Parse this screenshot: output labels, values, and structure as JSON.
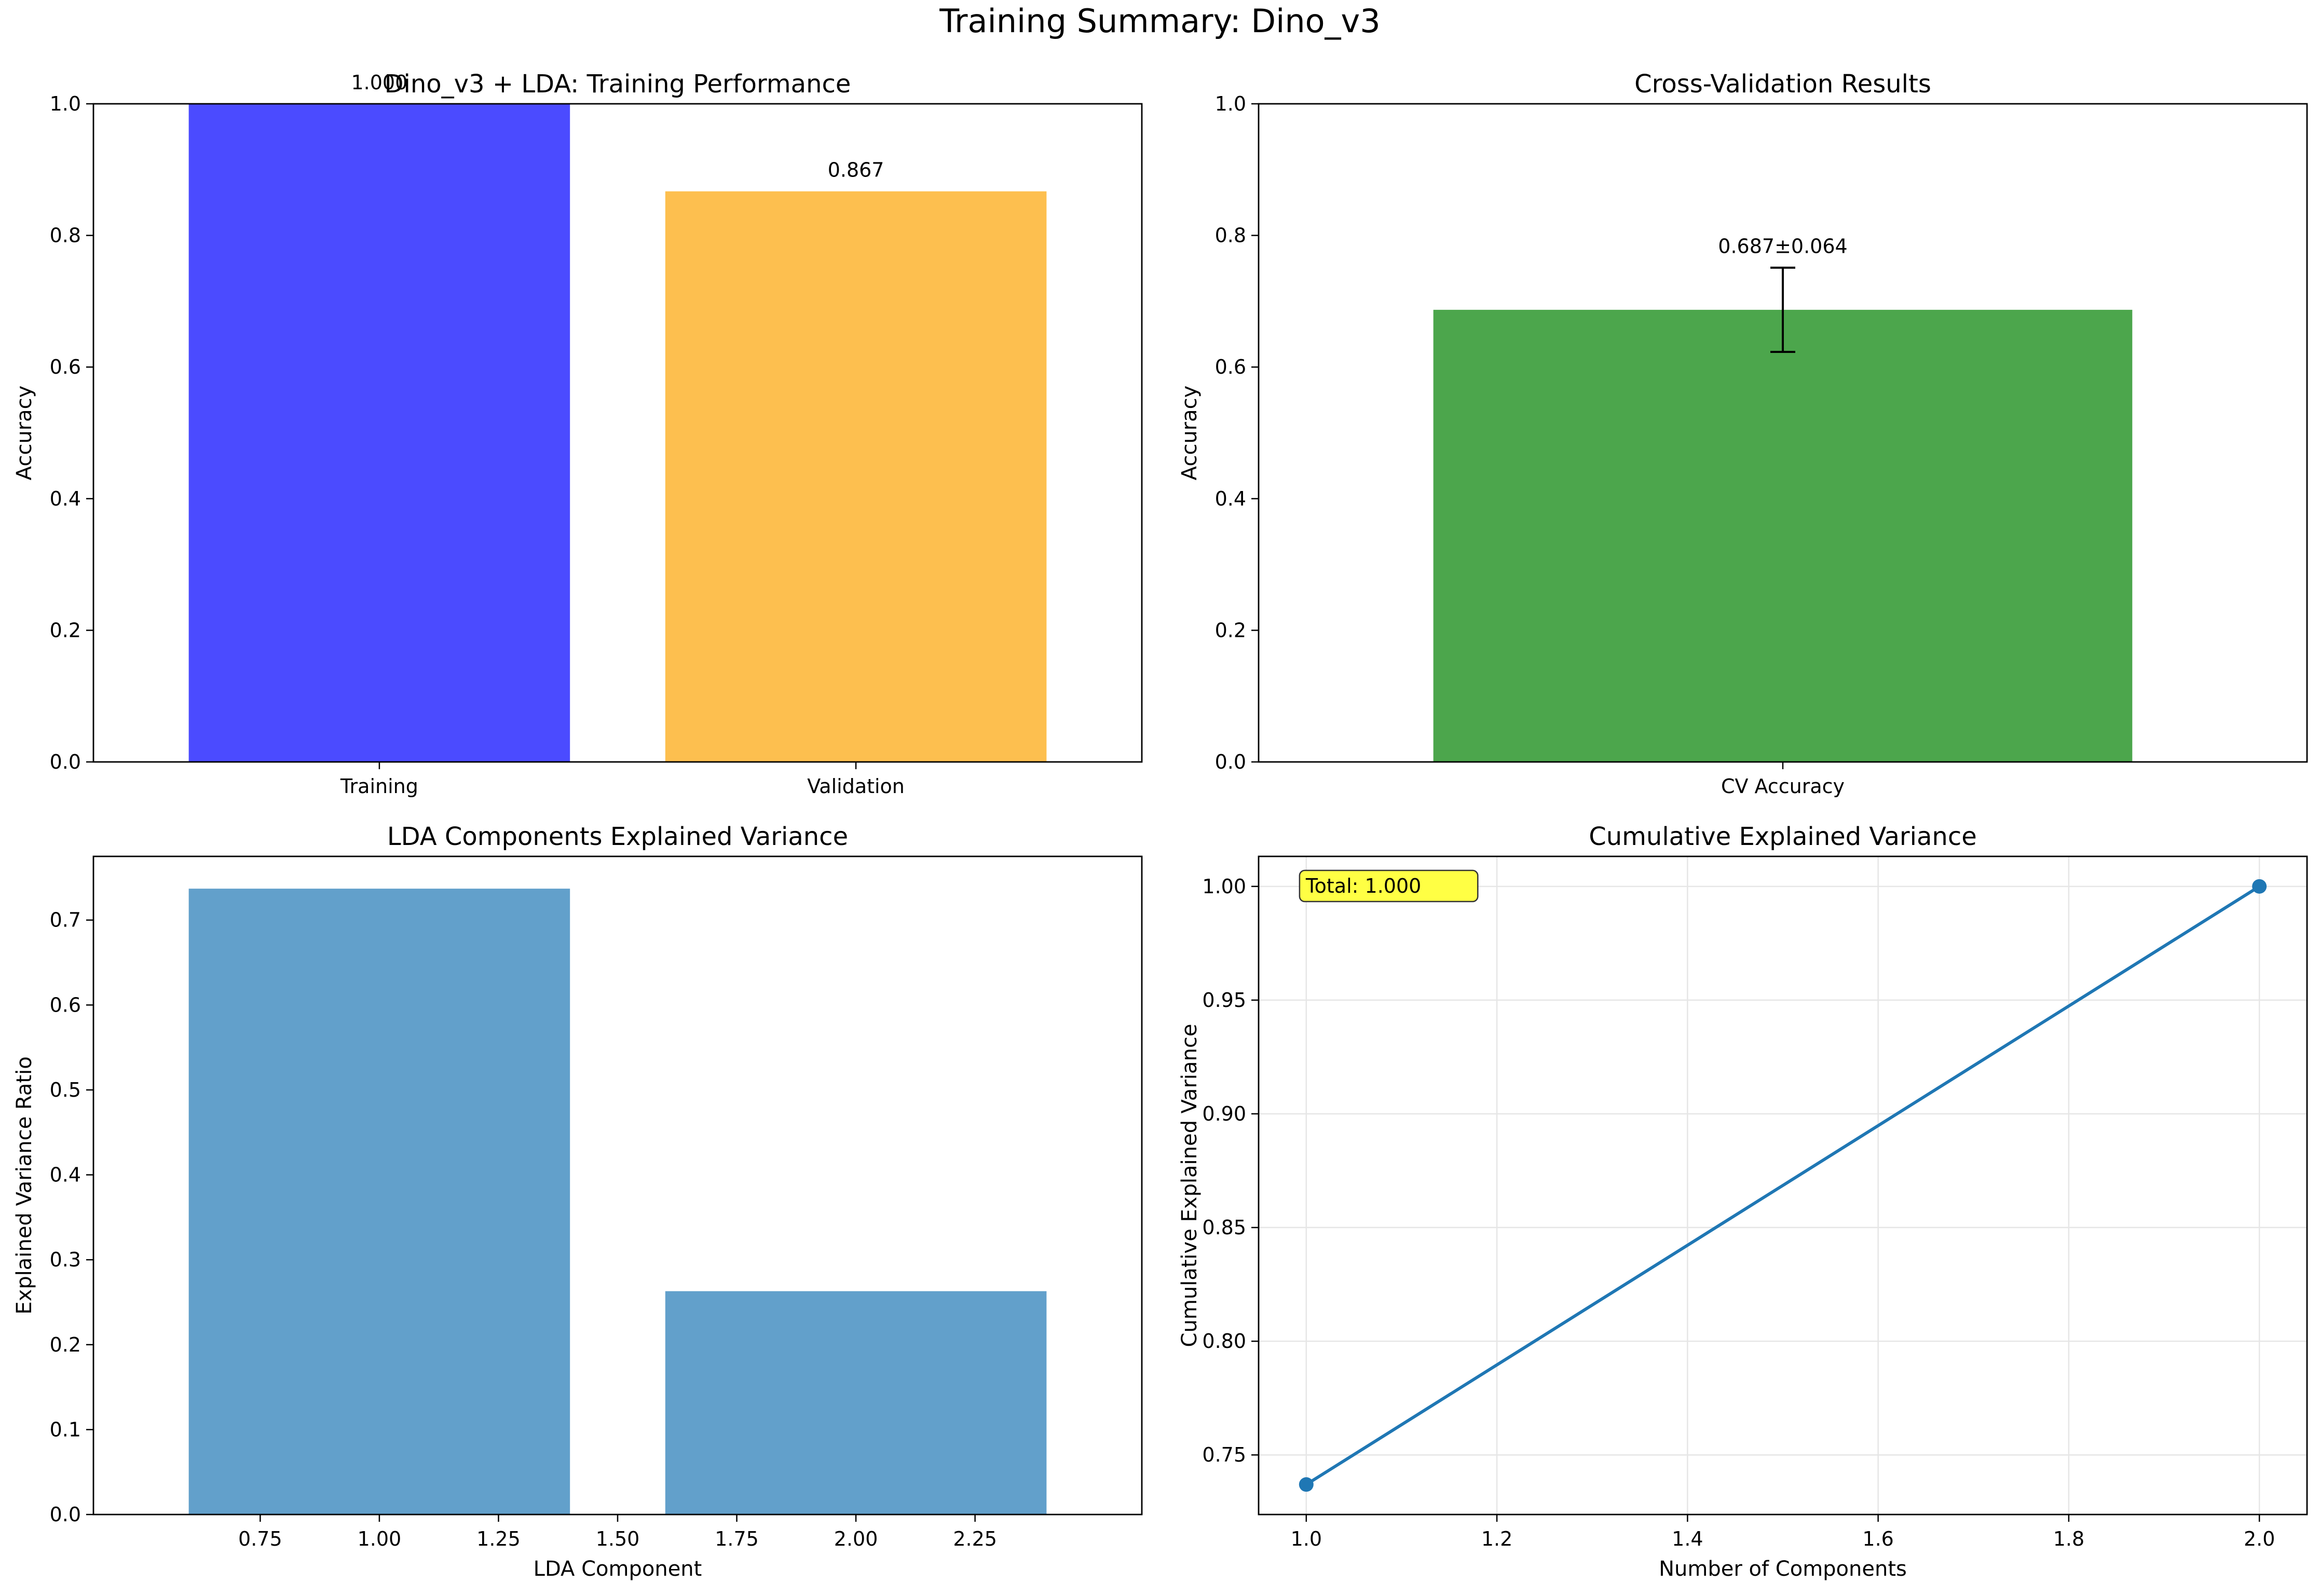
{
  "figure": {
    "suptitle": "Training Summary: Dino_v3"
  },
  "chart_data": [
    {
      "type": "bar",
      "title": "Dino_v3 + LDA: Training Performance",
      "xlabel": "",
      "ylabel": "Accuracy",
      "categories": [
        "Training",
        "Validation"
      ],
      "values": [
        1.0,
        0.867
      ],
      "value_labels": [
        "1.000",
        "0.867"
      ],
      "colors": [
        "#4b4bff",
        "#fdbf4f"
      ],
      "ylim": [
        0,
        1.0
      ],
      "yticks": [
        0.0,
        0.2,
        0.4,
        0.6,
        0.8,
        1.0
      ],
      "ytick_labels": [
        "0.0",
        "0.2",
        "0.4",
        "0.6",
        "0.8",
        "1.0"
      ],
      "grid": false
    },
    {
      "type": "bar",
      "title": "Cross-Validation Results",
      "xlabel": "",
      "ylabel": "Accuracy",
      "categories": [
        "CV Accuracy"
      ],
      "values": [
        0.687
      ],
      "errors": [
        0.064
      ],
      "value_labels": [
        "0.687±0.064"
      ],
      "colors": [
        "#4ca64c"
      ],
      "ylim": [
        0,
        1.0
      ],
      "yticks": [
        0.0,
        0.2,
        0.4,
        0.6,
        0.8,
        1.0
      ],
      "ytick_labels": [
        "0.0",
        "0.2",
        "0.4",
        "0.6",
        "0.8",
        "1.0"
      ],
      "grid": false
    },
    {
      "type": "bar",
      "title": "LDA Components Explained Variance",
      "xlabel": "LDA Component",
      "ylabel": "Explained Variance Ratio",
      "x": [
        1,
        2
      ],
      "values": [
        0.737,
        0.263
      ],
      "colors": [
        "#62a0cb"
      ],
      "xlim": [
        0.4,
        2.6
      ],
      "xticks": [
        0.75,
        1.0,
        1.25,
        1.5,
        1.75,
        2.0,
        2.25
      ],
      "xtick_labels": [
        "0.75",
        "1.00",
        "1.25",
        "1.50",
        "1.75",
        "2.00",
        "2.25"
      ],
      "ylim": [
        0,
        0.775
      ],
      "yticks": [
        0.0,
        0.1,
        0.2,
        0.3,
        0.4,
        0.5,
        0.6,
        0.7
      ],
      "ytick_labels": [
        "0.0",
        "0.1",
        "0.2",
        "0.3",
        "0.4",
        "0.5",
        "0.6",
        "0.7"
      ],
      "grid": false
    },
    {
      "type": "line",
      "title": "Cumulative Explained Variance",
      "xlabel": "Number of Components",
      "ylabel": "Cumulative Explained Variance",
      "x": [
        1,
        2
      ],
      "y": [
        0.737,
        1.0
      ],
      "color": "#1f77b4",
      "markers": true,
      "annotation": "Total: 1.000",
      "annotation_color": "#ffff44",
      "xlim": [
        0.95,
        2.05
      ],
      "xticks": [
        1.0,
        1.2,
        1.4,
        1.6,
        1.8,
        2.0
      ],
      "xtick_labels": [
        "1.0",
        "1.2",
        "1.4",
        "1.6",
        "1.8",
        "2.0"
      ],
      "ylim": [
        0.7238,
        1.0132
      ],
      "yticks": [
        0.75,
        0.8,
        0.85,
        0.9,
        0.95,
        1.0
      ],
      "ytick_labels": [
        "0.75",
        "0.80",
        "0.85",
        "0.90",
        "0.95",
        "1.00"
      ],
      "grid": true
    }
  ]
}
